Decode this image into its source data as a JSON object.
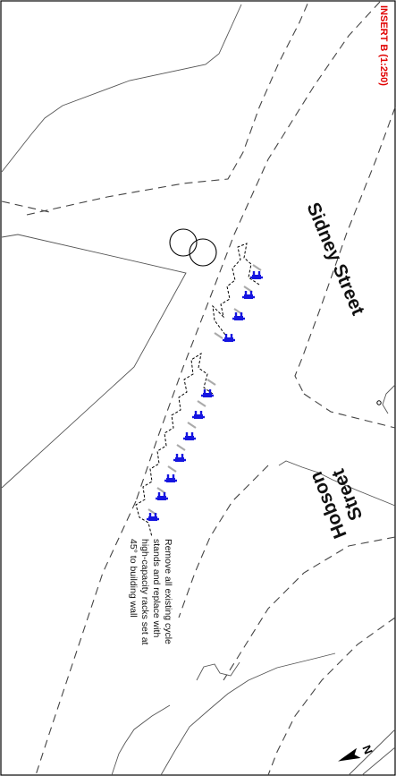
{
  "insert_label": "INSERT B (1:250)",
  "streets": {
    "sidney": "Sidney Street",
    "hobson_line1": "Hobson",
    "hobson_line2": "Street"
  },
  "note": {
    "line1": "Remove all existing cycle",
    "line2": "stands and replace with",
    "line3": "high-capacity racks set at",
    "line4": "45° to building wall"
  },
  "north_arrow_label": "N",
  "colors": {
    "rack": "#1515e0",
    "insert_label": "#e00000",
    "existing_stand": "#aaaaaa"
  }
}
